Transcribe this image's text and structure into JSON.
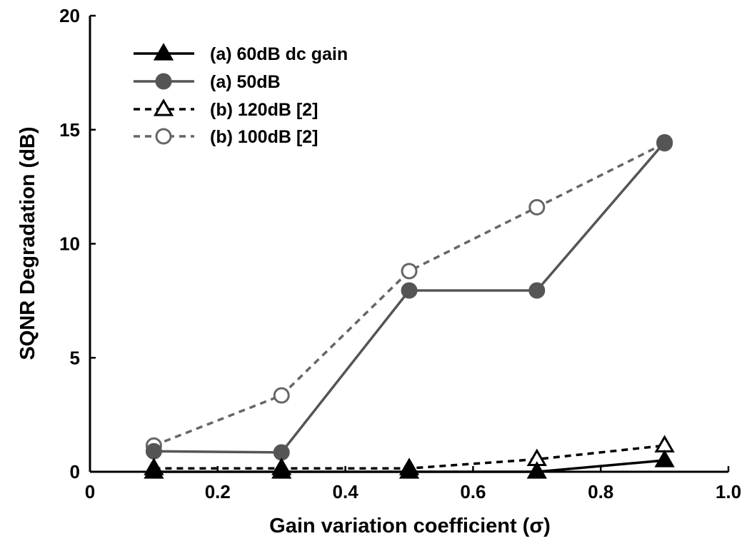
{
  "chart_data": {
    "type": "line",
    "title": "",
    "xlabel": "Gain variation coefficient (σ)",
    "ylabel": "SQNR Degradation (dB)",
    "xlim": [
      0,
      1.0
    ],
    "ylim": [
      0,
      20
    ],
    "xticks": [
      {
        "value": 0,
        "label": "0"
      },
      {
        "value": 0.2,
        "label": "0.2"
      },
      {
        "value": 0.4,
        "label": "0.4"
      },
      {
        "value": 0.6,
        "label": "0.6"
      },
      {
        "value": 0.8,
        "label": "0.8"
      },
      {
        "value": 1.0,
        "label": "1.0"
      }
    ],
    "yticks": [
      {
        "value": 0,
        "label": "0"
      },
      {
        "value": 5,
        "label": "5"
      },
      {
        "value": 10,
        "label": "10"
      },
      {
        "value": 15,
        "label": "15"
      },
      {
        "value": 20,
        "label": "20"
      }
    ],
    "grid": false,
    "legend_position": "top-left",
    "x": [
      0.1,
      0.3,
      0.5,
      0.7,
      0.9
    ],
    "series": [
      {
        "name": "(a) 60dB dc gain",
        "values": [
          0.0,
          0.0,
          0.0,
          0.0,
          0.5
        ],
        "color": "#000000",
        "dashed": false,
        "marker": "triangle",
        "filled": true
      },
      {
        "name": "(a) 50dB",
        "values": [
          0.9,
          0.85,
          7.95,
          7.95,
          14.45
        ],
        "color": "#555555",
        "dashed": false,
        "marker": "circle",
        "filled": true
      },
      {
        "name": "(b) 120dB [2]",
        "values": [
          0.15,
          0.15,
          0.15,
          0.55,
          1.15
        ],
        "color": "#000000",
        "dashed": true,
        "marker": "triangle",
        "filled": false
      },
      {
        "name": "(b) 100dB [2]",
        "values": [
          1.15,
          3.35,
          8.8,
          11.6,
          14.4
        ],
        "color": "#666666",
        "dashed": true,
        "marker": "circle",
        "filled": false
      }
    ]
  }
}
